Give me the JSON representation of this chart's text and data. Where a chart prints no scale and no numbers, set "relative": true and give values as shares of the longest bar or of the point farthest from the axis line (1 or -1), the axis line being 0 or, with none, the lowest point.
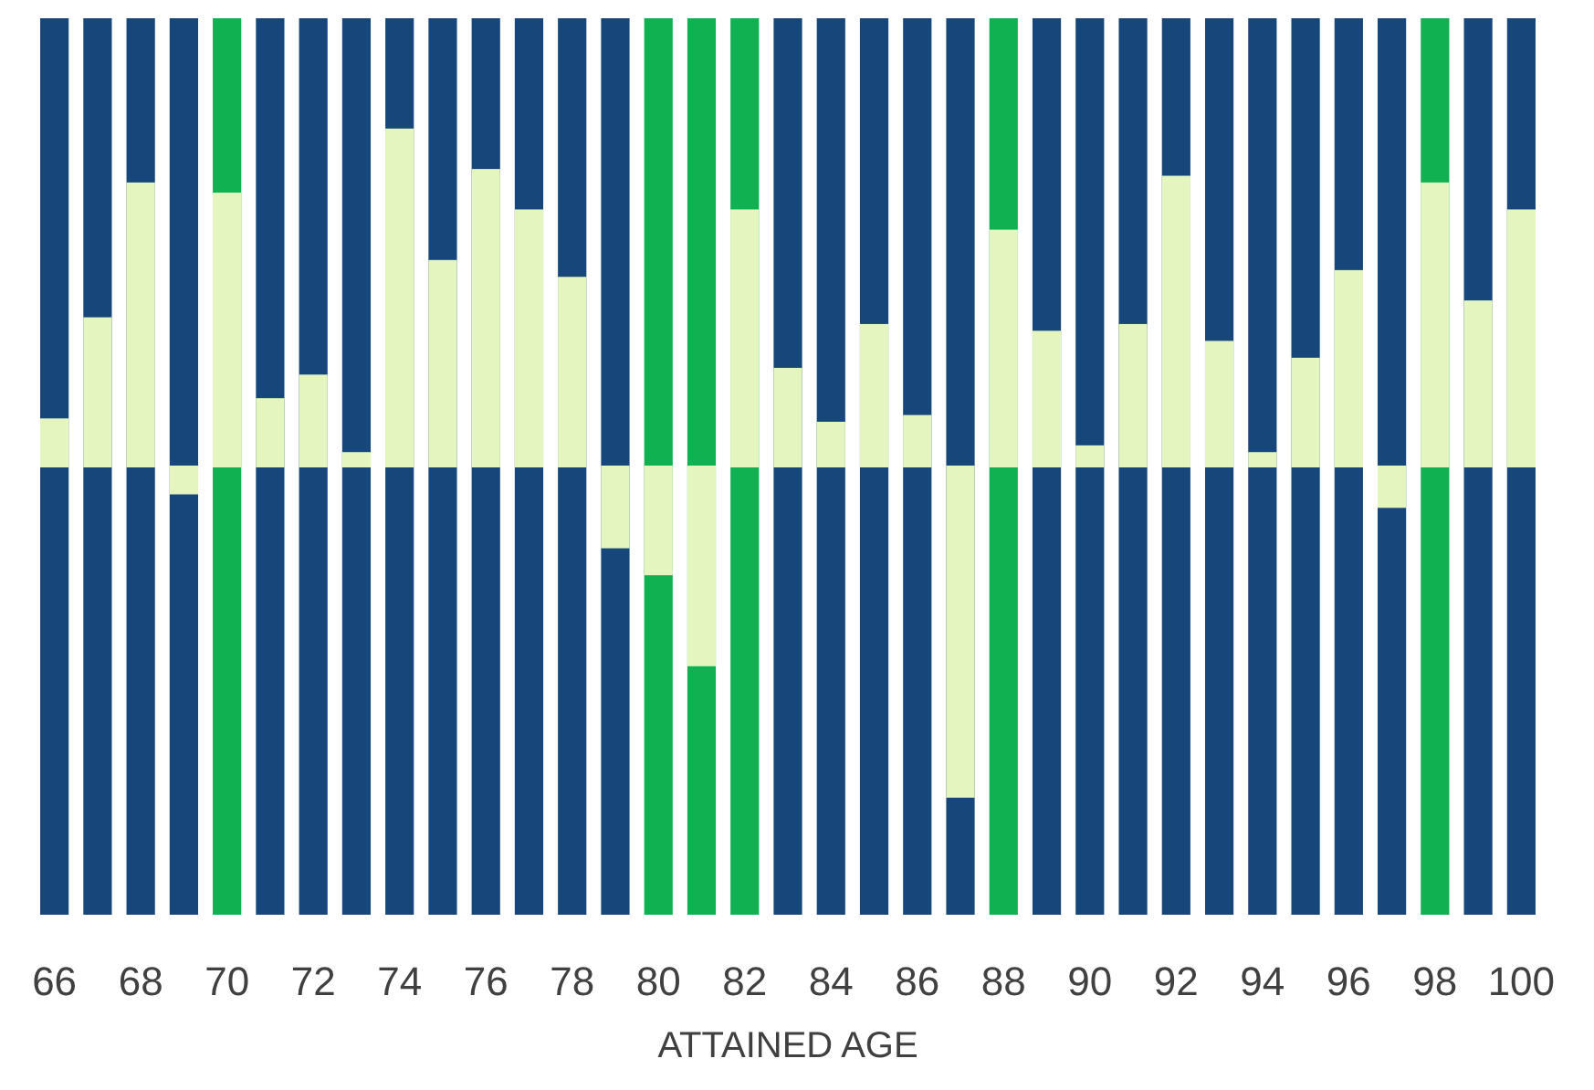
{
  "chart_data": {
    "type": "bar",
    "relative": true,
    "xlabel": "ATTAINED AGE",
    "x": [
      66,
      67,
      68,
      69,
      70,
      71,
      72,
      73,
      74,
      75,
      76,
      77,
      78,
      79,
      80,
      81,
      82,
      83,
      84,
      85,
      86,
      87,
      88,
      89,
      90,
      91,
      92,
      93,
      94,
      95,
      96,
      97,
      98,
      99,
      100
    ],
    "xlim": [
      65.5,
      100.5
    ],
    "xticks": [
      66,
      68,
      70,
      72,
      74,
      76,
      78,
      80,
      82,
      84,
      86,
      88,
      90,
      92,
      94,
      96,
      98,
      100
    ],
    "tick_labels": "x",
    "series": [
      {
        "color": "#e4f5c0",
        "values": [
          0.14,
          0.44,
          0.84,
          -0.08,
          0.81,
          0.2,
          0.27,
          0.04,
          1,
          0.61,
          0.88,
          0.76,
          0.56,
          -0.24,
          -0.32,
          -0.59,
          0.76,
          0.29,
          0.13,
          0.42,
          0.15,
          -0.98,
          0.7,
          0.4,
          0.06,
          0.42,
          0.86,
          0.37,
          0.04,
          0.32,
          0.58,
          -0.12,
          0.84,
          0.49,
          0.76
        ]
      }
    ],
    "bands": [
      {
        "axis": "x",
        "from": 65.67,
        "to": 66.33,
        "color": "#17477a"
      },
      {
        "axis": "x",
        "from": 66.67,
        "to": 67.33,
        "color": "#17477a"
      },
      {
        "axis": "x",
        "from": 67.67,
        "to": 68.33,
        "color": "#17477a"
      },
      {
        "axis": "x",
        "from": 68.67,
        "to": 69.33,
        "color": "#17477a"
      },
      {
        "axis": "x",
        "from": 69.67,
        "to": 70.33,
        "color": "#10b150"
      },
      {
        "axis": "x",
        "from": 70.67,
        "to": 71.33,
        "color": "#17477a"
      },
      {
        "axis": "x",
        "from": 71.67,
        "to": 72.33,
        "color": "#17477a"
      },
      {
        "axis": "x",
        "from": 72.67,
        "to": 73.33,
        "color": "#17477a"
      },
      {
        "axis": "x",
        "from": 73.67,
        "to": 74.33,
        "color": "#17477a"
      },
      {
        "axis": "x",
        "from": 74.67,
        "to": 75.33,
        "color": "#17477a"
      },
      {
        "axis": "x",
        "from": 75.67,
        "to": 76.33,
        "color": "#17477a"
      },
      {
        "axis": "x",
        "from": 76.67,
        "to": 77.33,
        "color": "#17477a"
      },
      {
        "axis": "x",
        "from": 77.67,
        "to": 78.33,
        "color": "#17477a"
      },
      {
        "axis": "x",
        "from": 78.67,
        "to": 79.33,
        "color": "#17477a"
      },
      {
        "axis": "x",
        "from": 79.67,
        "to": 80.33,
        "color": "#10b150"
      },
      {
        "axis": "x",
        "from": 80.67,
        "to": 81.33,
        "color": "#10b150"
      },
      {
        "axis": "x",
        "from": 81.67,
        "to": 82.33,
        "color": "#10b150"
      },
      {
        "axis": "x",
        "from": 82.67,
        "to": 83.33,
        "color": "#17477a"
      },
      {
        "axis": "x",
        "from": 83.67,
        "to": 84.33,
        "color": "#17477a"
      },
      {
        "axis": "x",
        "from": 84.67,
        "to": 85.33,
        "color": "#17477a"
      },
      {
        "axis": "x",
        "from": 85.67,
        "to": 86.33,
        "color": "#17477a"
      },
      {
        "axis": "x",
        "from": 86.67,
        "to": 87.33,
        "color": "#17477a"
      },
      {
        "axis": "x",
        "from": 87.67,
        "to": 88.33,
        "color": "#10b150"
      },
      {
        "axis": "x",
        "from": 88.67,
        "to": 89.33,
        "color": "#17477a"
      },
      {
        "axis": "x",
        "from": 89.67,
        "to": 90.33,
        "color": "#17477a"
      },
      {
        "axis": "x",
        "from": 90.67,
        "to": 91.33,
        "color": "#17477a"
      },
      {
        "axis": "x",
        "from": 91.67,
        "to": 92.33,
        "color": "#17477a"
      },
      {
        "axis": "x",
        "from": 92.67,
        "to": 93.33,
        "color": "#17477a"
      },
      {
        "axis": "x",
        "from": 93.67,
        "to": 94.33,
        "color": "#17477a"
      },
      {
        "axis": "x",
        "from": 94.67,
        "to": 95.33,
        "color": "#17477a"
      },
      {
        "axis": "x",
        "from": 95.67,
        "to": 96.33,
        "color": "#17477a"
      },
      {
        "axis": "x",
        "from": 96.67,
        "to": 97.33,
        "color": "#17477a"
      },
      {
        "axis": "x",
        "from": 97.67,
        "to": 98.33,
        "color": "#10b150"
      },
      {
        "axis": "x",
        "from": 98.67,
        "to": 99.33,
        "color": "#17477a"
      },
      {
        "axis": "x",
        "from": 99.67,
        "to": 100.33,
        "color": "#17477a"
      }
    ]
  }
}
